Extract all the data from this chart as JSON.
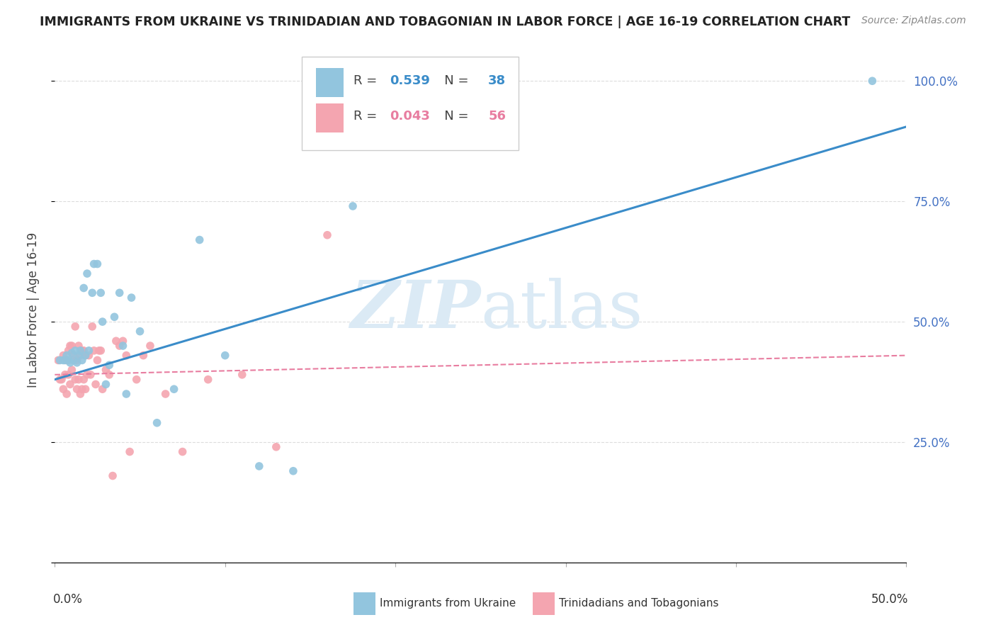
{
  "title": "IMMIGRANTS FROM UKRAINE VS TRINIDADIAN AND TOBAGONIAN IN LABOR FORCE | AGE 16-19 CORRELATION CHART",
  "source": "Source: ZipAtlas.com",
  "ylabel": "In Labor Force | Age 16-19",
  "ukraine_R": 0.539,
  "ukraine_N": 38,
  "tt_R": 0.043,
  "tt_N": 56,
  "ukraine_color": "#92c5de",
  "tt_color": "#f4a5b0",
  "ukraine_line_color": "#3a8cc9",
  "tt_line_color": "#e87da0",
  "legend_ukraine_label": "Immigrants from Ukraine",
  "legend_tt_label": "Trinidadians and Tobagonians",
  "ukraine_scatter_x": [
    0.003,
    0.005,
    0.006,
    0.007,
    0.008,
    0.009,
    0.01,
    0.011,
    0.012,
    0.013,
    0.014,
    0.015,
    0.016,
    0.017,
    0.018,
    0.019,
    0.02,
    0.022,
    0.023,
    0.025,
    0.027,
    0.028,
    0.03,
    0.032,
    0.035,
    0.038,
    0.04,
    0.042,
    0.045,
    0.05,
    0.06,
    0.07,
    0.085,
    0.1,
    0.12,
    0.14,
    0.175,
    0.48
  ],
  "ukraine_scatter_y": [
    0.42,
    0.42,
    0.42,
    0.43,
    0.42,
    0.415,
    0.435,
    0.42,
    0.44,
    0.415,
    0.43,
    0.44,
    0.42,
    0.57,
    0.43,
    0.6,
    0.44,
    0.56,
    0.62,
    0.62,
    0.56,
    0.5,
    0.37,
    0.41,
    0.51,
    0.56,
    0.45,
    0.35,
    0.55,
    0.48,
    0.29,
    0.36,
    0.67,
    0.43,
    0.2,
    0.19,
    0.74,
    1.0
  ],
  "tt_scatter_x": [
    0.002,
    0.003,
    0.004,
    0.005,
    0.005,
    0.006,
    0.007,
    0.007,
    0.008,
    0.008,
    0.009,
    0.009,
    0.01,
    0.01,
    0.011,
    0.012,
    0.012,
    0.013,
    0.013,
    0.014,
    0.014,
    0.015,
    0.015,
    0.016,
    0.016,
    0.017,
    0.017,
    0.018,
    0.018,
    0.019,
    0.02,
    0.021,
    0.022,
    0.023,
    0.024,
    0.025,
    0.026,
    0.027,
    0.028,
    0.03,
    0.032,
    0.034,
    0.036,
    0.038,
    0.04,
    0.042,
    0.044,
    0.048,
    0.052,
    0.056,
    0.065,
    0.075,
    0.09,
    0.11,
    0.13,
    0.16
  ],
  "tt_scatter_y": [
    0.42,
    0.38,
    0.38,
    0.36,
    0.43,
    0.39,
    0.35,
    0.42,
    0.39,
    0.44,
    0.37,
    0.45,
    0.4,
    0.45,
    0.43,
    0.38,
    0.49,
    0.36,
    0.42,
    0.38,
    0.45,
    0.35,
    0.43,
    0.36,
    0.44,
    0.38,
    0.44,
    0.36,
    0.43,
    0.39,
    0.43,
    0.39,
    0.49,
    0.44,
    0.37,
    0.42,
    0.44,
    0.44,
    0.36,
    0.4,
    0.39,
    0.18,
    0.46,
    0.45,
    0.46,
    0.43,
    0.23,
    0.38,
    0.43,
    0.45,
    0.35,
    0.23,
    0.38,
    0.39,
    0.24,
    0.68
  ],
  "watermark_zip": "ZIP",
  "watermark_atlas": "atlas",
  "background_color": "#ffffff",
  "grid_color": "#dddddd",
  "xmin": 0.0,
  "xmax": 0.5,
  "ymin": 0.0,
  "ymax": 1.05
}
